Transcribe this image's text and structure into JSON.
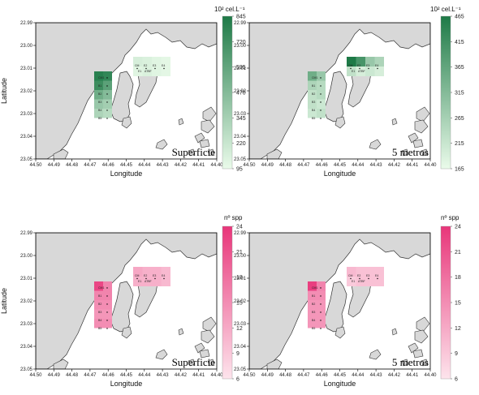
{
  "panels": [
    {
      "id": "density-surface",
      "variable": "density",
      "unit": "10² cel.L⁻¹",
      "depth_label": "Superficie",
      "xlabel": "Longitude",
      "ylabel": "Latitude",
      "colorbar_ticks": [
        "845",
        "720",
        "595",
        "470",
        "345",
        "220",
        "95"
      ],
      "palette": [
        "#eafbea",
        "#1e7a47"
      ],
      "north_cells": [
        0.95,
        0.9,
        0.85,
        0.7,
        0.6,
        0.5,
        0.4,
        0.35,
        0.3,
        0.25
      ],
      "south_cells": [
        0.1,
        0.08,
        0.05,
        0.03,
        0.05,
        0.08,
        0.05,
        0.03
      ],
      "show_ylabel": true
    },
    {
      "id": "density-5m",
      "variable": "density",
      "unit": "10² cel.L⁻¹",
      "depth_label": "5 metros",
      "xlabel": "Longitude",
      "ylabel": "",
      "colorbar_ticks": [
        "465",
        "415",
        "365",
        "315",
        "265",
        "215",
        "165"
      ],
      "palette": [
        "#eafbea",
        "#1e7a47"
      ],
      "north_cells": [
        0.6,
        0.4,
        0.3,
        0.25,
        0.2,
        0.25,
        0.2,
        0.15,
        0.15,
        0.2
      ],
      "south_cells": [
        1.0,
        0.8,
        0.4,
        0.3,
        0.2,
        0.1,
        0.15,
        0.1
      ],
      "show_ylabel": false
    },
    {
      "id": "richness-surface",
      "variable": "richness",
      "unit": "nº spp",
      "depth_label": "Superficie",
      "xlabel": "Longitude",
      "ylabel": "Latitude",
      "colorbar_ticks": [
        "24",
        "21",
        "18",
        "15",
        "12",
        "9",
        "6"
      ],
      "palette": [
        "#fde4ec",
        "#e8367a"
      ],
      "north_cells": [
        0.9,
        0.55,
        0.55,
        0.55,
        0.5,
        0.5,
        0.45,
        0.45,
        0.5,
        0.5
      ],
      "south_cells": [
        0.35,
        0.3,
        0.3,
        0.25,
        0.3,
        0.3,
        0.3,
        0.25
      ],
      "show_ylabel": true
    },
    {
      "id": "richness-5m",
      "variable": "richness",
      "unit": "nº spp",
      "depth_label": "5 metros",
      "xlabel": "Longitude",
      "ylabel": "",
      "colorbar_ticks": [
        "24",
        "21",
        "18",
        "15",
        "12",
        "9",
        "6"
      ],
      "palette": [
        "#fde4ec",
        "#e8367a"
      ],
      "north_cells": [
        0.95,
        0.55,
        0.5,
        0.5,
        0.45,
        0.45,
        0.45,
        0.45,
        0.45,
        0.45
      ],
      "south_cells": [
        0.25,
        0.2,
        0.2,
        0.2,
        0.15,
        0.2,
        0.2,
        0.2
      ],
      "show_ylabel": false
    }
  ],
  "axes": {
    "x_ticks": [
      "44.50",
      "44.49",
      "44.48",
      "44.47",
      "44.46",
      "44.45",
      "44.44",
      "44.43",
      "44.42",
      "44.41",
      "44.40"
    ],
    "y_ticks": [
      "22.99",
      "23.00",
      "23.01",
      "23.02",
      "23.03",
      "23.04",
      "23.05"
    ]
  },
  "station_labels": {
    "row1": [
      "CM",
      "E2",
      "E3",
      "E4"
    ],
    "row2": [
      "E1",
      "ATBF"
    ],
    "vertical": [
      "CM1",
      "B1",
      "B2",
      "B3",
      "B4",
      "B5"
    ]
  },
  "chart_data": [
    {
      "type": "heatmap",
      "title": "",
      "xlabel": "Longitude",
      "ylabel": "Latitude",
      "xlim": [
        44.5,
        44.4
      ],
      "ylim": [
        23.05,
        22.99
      ],
      "x_ticks": [
        44.5,
        44.49,
        44.48,
        44.47,
        44.46,
        44.45,
        44.44,
        44.43,
        44.42,
        44.41,
        44.4
      ],
      "y_ticks": [
        22.99,
        23.0,
        23.01,
        23.02,
        23.03,
        23.04,
        23.05
      ],
      "legend_unit": "10² cel.L⁻¹",
      "color_range": [
        95,
        845
      ],
      "annotation": "Superficie"
    },
    {
      "type": "heatmap",
      "title": "",
      "xlabel": "Longitude",
      "ylabel": "",
      "xlim": [
        44.5,
        44.4
      ],
      "ylim": [
        23.05,
        22.99
      ],
      "legend_unit": "10² cel.L⁻¹",
      "color_range": [
        165,
        465
      ],
      "annotation": "5 metros"
    },
    {
      "type": "heatmap",
      "title": "",
      "xlabel": "Longitude",
      "ylabel": "Latitude",
      "xlim": [
        44.5,
        44.4
      ],
      "ylim": [
        23.05,
        22.99
      ],
      "legend_unit": "nº spp",
      "color_range": [
        6,
        24
      ],
      "annotation": "Superficie"
    },
    {
      "type": "heatmap",
      "title": "",
      "xlabel": "Longitude",
      "ylabel": "",
      "xlim": [
        44.5,
        44.4
      ],
      "ylim": [
        23.05,
        22.99
      ],
      "legend_unit": "nº spp",
      "color_range": [
        6,
        24
      ],
      "annotation": "5 metros"
    }
  ]
}
